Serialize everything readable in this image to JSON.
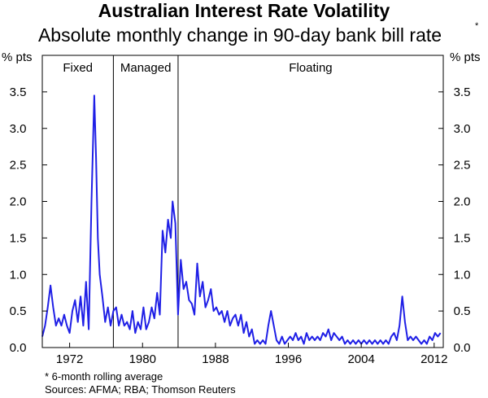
{
  "title": "Australian Interest Rate Volatility",
  "subtitle": "Absolute monthly change in 90-day bank bill rate",
  "subtitle_mark": "*",
  "unit_left": "% pts",
  "unit_right": "% pts",
  "footnote": "*      6-month rolling average",
  "sources": "Sources: AFMA; RBA; Thomson Reuters",
  "chart_data": {
    "type": "line",
    "xlim": [
      1969.0,
      2013.0
    ],
    "ylim": [
      0,
      4.0
    ],
    "y_ticks": [
      0.0,
      0.5,
      1.0,
      1.5,
      2.0,
      2.5,
      3.0,
      3.5
    ],
    "y_tick_labels": [
      "0.0",
      "0.5",
      "1.0",
      "1.5",
      "2.0",
      "2.5",
      "3.0",
      "3.5"
    ],
    "x_ticks": [
      1972,
      1980,
      1988,
      1996,
      2004,
      2012
    ],
    "x_tick_labels": [
      "1972",
      "1980",
      "1988",
      "1996",
      "2004",
      "2012"
    ],
    "regimes": [
      {
        "label": "Fixed",
        "start": 1969.0,
        "end": 1976.8
      },
      {
        "label": "Managed",
        "start": 1976.8,
        "end": 1983.9
      },
      {
        "label": "Floating",
        "start": 1983.9,
        "end": 2013.0
      }
    ],
    "regime_dividers": [
      1976.8,
      1983.9
    ],
    "line_color": "#1f1fe6",
    "series": [
      {
        "x": [
          1969.0,
          1969.3,
          1969.6,
          1969.9,
          1970.2,
          1970.5,
          1970.8,
          1971.1,
          1971.4,
          1971.7,
          1972.0,
          1972.3,
          1972.6,
          1972.9,
          1973.2,
          1973.5,
          1973.8,
          1974.1,
          1974.4,
          1974.7,
          1974.9,
          1975.1,
          1975.3,
          1975.6,
          1975.9,
          1976.2,
          1976.5,
          1976.8,
          1977.1,
          1977.4,
          1977.7,
          1978.0,
          1978.3,
          1978.6,
          1978.9,
          1979.2,
          1979.5,
          1979.8,
          1980.1,
          1980.4,
          1980.7,
          1981.0,
          1981.3,
          1981.6,
          1981.9,
          1982.2,
          1982.5,
          1982.8,
          1983.1,
          1983.3,
          1983.6,
          1983.9,
          1984.2,
          1984.5,
          1984.8,
          1985.1,
          1985.4,
          1985.7,
          1986.0,
          1986.3,
          1986.6,
          1986.9,
          1987.2,
          1987.5,
          1987.8,
          1988.1,
          1988.4,
          1988.7,
          1989.0,
          1989.3,
          1989.6,
          1989.9,
          1990.2,
          1990.5,
          1990.8,
          1991.1,
          1991.4,
          1991.7,
          1992.0,
          1992.3,
          1992.6,
          1992.9,
          1993.2,
          1993.5,
          1993.8,
          1994.1,
          1994.4,
          1994.7,
          1995.0,
          1995.3,
          1995.6,
          1995.9,
          1996.2,
          1996.5,
          1996.8,
          1997.1,
          1997.4,
          1997.7,
          1998.0,
          1998.3,
          1998.6,
          1998.9,
          1999.2,
          1999.5,
          1999.8,
          2000.1,
          2000.4,
          2000.7,
          2001.0,
          2001.3,
          2001.6,
          2001.9,
          2002.2,
          2002.5,
          2002.8,
          2003.1,
          2003.4,
          2003.7,
          2004.0,
          2004.3,
          2004.6,
          2004.9,
          2005.2,
          2005.5,
          2005.8,
          2006.1,
          2006.4,
          2006.7,
          2007.0,
          2007.3,
          2007.6,
          2007.9,
          2008.2,
          2008.5,
          2008.8,
          2009.1,
          2009.4,
          2009.7,
          2010.0,
          2010.3,
          2010.6,
          2010.9,
          2011.2,
          2011.5,
          2011.8,
          2012.1,
          2012.4,
          2012.7
        ],
        "values": [
          0.15,
          0.3,
          0.55,
          0.85,
          0.55,
          0.3,
          0.4,
          0.3,
          0.45,
          0.3,
          0.2,
          0.5,
          0.65,
          0.35,
          0.7,
          0.3,
          0.9,
          0.25,
          2.0,
          3.45,
          2.6,
          1.5,
          1.0,
          0.7,
          0.35,
          0.55,
          0.3,
          0.5,
          0.55,
          0.3,
          0.45,
          0.3,
          0.35,
          0.25,
          0.5,
          0.2,
          0.35,
          0.25,
          0.55,
          0.25,
          0.35,
          0.55,
          0.4,
          0.75,
          0.45,
          1.6,
          1.3,
          1.75,
          1.5,
          2.0,
          1.7,
          0.45,
          1.2,
          0.8,
          0.9,
          0.65,
          0.6,
          0.45,
          1.15,
          0.7,
          0.9,
          0.55,
          0.65,
          0.8,
          0.5,
          0.55,
          0.45,
          0.5,
          0.35,
          0.5,
          0.3,
          0.4,
          0.45,
          0.3,
          0.45,
          0.2,
          0.35,
          0.15,
          0.25,
          0.05,
          0.1,
          0.05,
          0.1,
          0.05,
          0.3,
          0.5,
          0.3,
          0.1,
          0.05,
          0.15,
          0.05,
          0.1,
          0.15,
          0.1,
          0.2,
          0.1,
          0.15,
          0.05,
          0.2,
          0.1,
          0.15,
          0.1,
          0.15,
          0.1,
          0.2,
          0.15,
          0.25,
          0.1,
          0.2,
          0.15,
          0.1,
          0.15,
          0.05,
          0.1,
          0.05,
          0.1,
          0.05,
          0.1,
          0.05,
          0.1,
          0.05,
          0.1,
          0.05,
          0.1,
          0.05,
          0.1,
          0.05,
          0.1,
          0.05,
          0.15,
          0.2,
          0.1,
          0.3,
          0.7,
          0.35,
          0.1,
          0.15,
          0.1,
          0.15,
          0.1,
          0.05,
          0.1,
          0.05,
          0.15,
          0.1,
          0.2,
          0.15,
          0.2
        ]
      }
    ]
  }
}
